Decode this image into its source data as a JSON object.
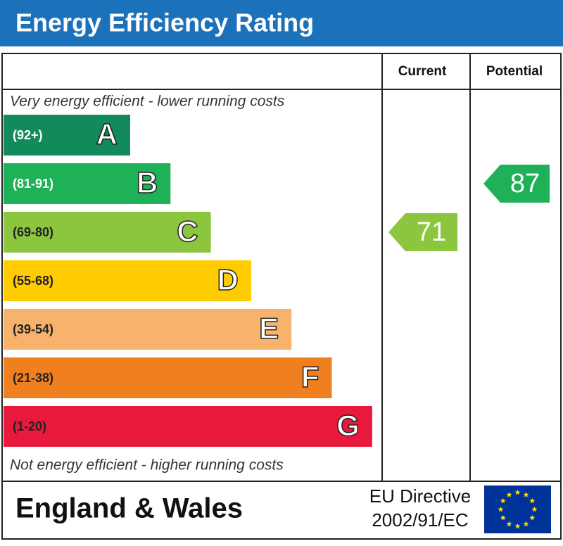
{
  "title": "Energy Efficiency Rating",
  "headers": {
    "current": "Current",
    "potential": "Potential"
  },
  "top_note": "Very energy efficient - lower running costs",
  "bottom_note": "Not energy efficient - higher running costs",
  "bands": [
    {
      "range": "(92+)",
      "letter": "A",
      "color": "#138a5a"
    },
    {
      "range": "(81-91)",
      "letter": "B",
      "color": "#1fb157"
    },
    {
      "range": "(69-80)",
      "letter": "C",
      "color": "#8cc63f"
    },
    {
      "range": "(55-68)",
      "letter": "D",
      "color": "#ffcc00"
    },
    {
      "range": "(39-54)",
      "letter": "E",
      "color": "#f7b26b"
    },
    {
      "range": "(21-38)",
      "letter": "F",
      "color": "#f0801f"
    },
    {
      "range": "(1-20)",
      "letter": "G",
      "color": "#e8193c"
    }
  ],
  "current": 71,
  "potential": 87,
  "footer": {
    "region": "England & Wales",
    "directive_line1": "EU Directive",
    "directive_line2": "2002/91/EC"
  }
}
